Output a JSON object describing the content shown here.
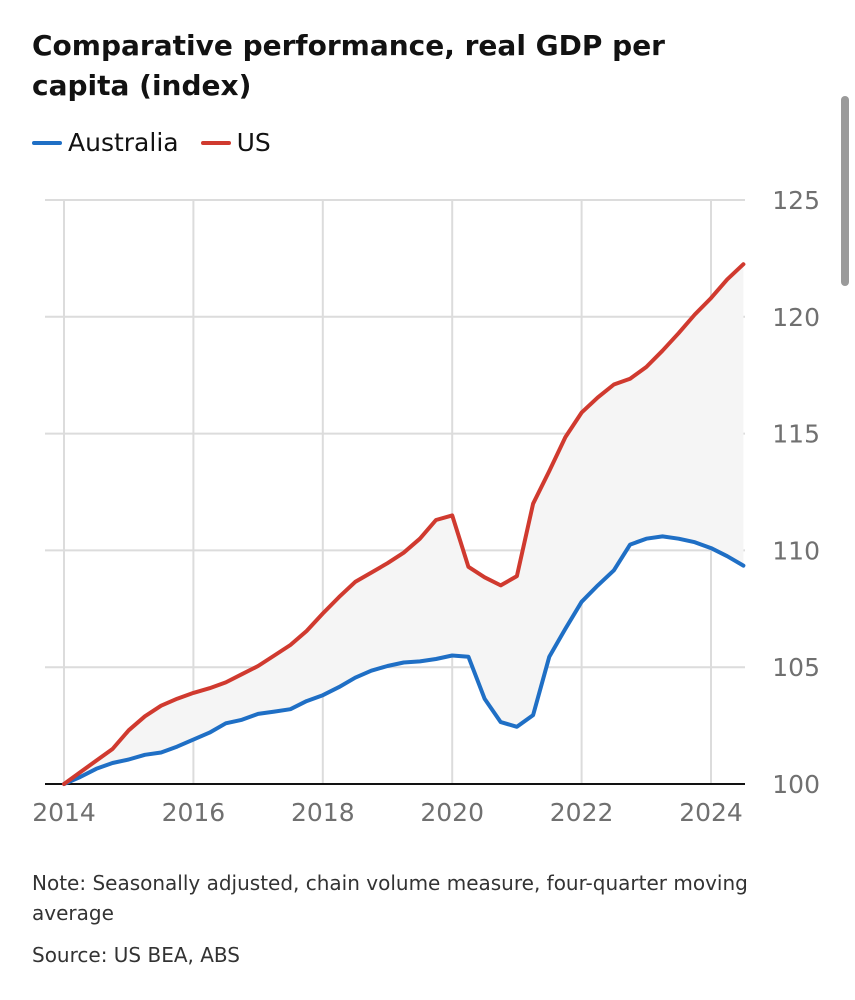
{
  "chart_data": {
    "type": "line",
    "title": "Comparative performance, real GDP per capita (index)",
    "xlabel": "",
    "ylabel": "",
    "xlim": [
      2014,
      2024.5
    ],
    "ylim": [
      100,
      125
    ],
    "x_ticks": [
      2014,
      2016,
      2018,
      2020,
      2022,
      2024
    ],
    "x_tick_labels": [
      "2014",
      "2016",
      "2018",
      "2020",
      "2022",
      "2024"
    ],
    "y_ticks": [
      100,
      105,
      110,
      115,
      120,
      125
    ],
    "y_tick_labels": [
      "100",
      "105",
      "110",
      "115",
      "120",
      "125"
    ],
    "grid": true,
    "legend": "top-left",
    "shaded_between_series": true,
    "x": [
      2014.0,
      2014.25,
      2014.5,
      2014.75,
      2015.0,
      2015.25,
      2015.5,
      2015.75,
      2016.0,
      2016.25,
      2016.5,
      2016.75,
      2017.0,
      2017.25,
      2017.5,
      2017.75,
      2018.0,
      2018.25,
      2018.5,
      2018.75,
      2019.0,
      2019.25,
      2019.5,
      2019.75,
      2020.0,
      2020.25,
      2020.5,
      2020.75,
      2021.0,
      2021.25,
      2021.5,
      2021.75,
      2022.0,
      2022.25,
      2022.5,
      2022.75,
      2023.0,
      2023.25,
      2023.5,
      2023.75,
      2024.0,
      2024.25,
      2024.5
    ],
    "series": [
      {
        "name": "Australia",
        "color": "#1f6fc5",
        "values": [
          100.0,
          100.3,
          100.65,
          100.9,
          101.05,
          101.25,
          101.35,
          101.6,
          101.9,
          102.2,
          102.6,
          102.75,
          103.0,
          103.1,
          103.2,
          103.55,
          103.8,
          104.15,
          104.55,
          104.85,
          105.05,
          105.2,
          105.25,
          105.35,
          105.5,
          105.45,
          103.65,
          102.65,
          102.45,
          102.95,
          105.45,
          106.65,
          107.8,
          108.5,
          109.15,
          110.25,
          110.5,
          110.6,
          110.5,
          110.35,
          110.1,
          109.75,
          109.35
        ]
      },
      {
        "name": "US",
        "color": "#d03a2f",
        "values": [
          100.0,
          100.5,
          101.0,
          101.5,
          102.3,
          102.9,
          103.35,
          103.65,
          103.9,
          104.1,
          104.35,
          104.7,
          105.05,
          105.5,
          105.95,
          106.55,
          107.3,
          108.0,
          108.65,
          109.05,
          109.45,
          109.9,
          110.5,
          111.3,
          111.5,
          109.3,
          108.85,
          108.5,
          108.9,
          112.0,
          113.4,
          114.85,
          115.9,
          116.55,
          117.1,
          117.35,
          117.85,
          118.55,
          119.3,
          120.1,
          120.8,
          121.6,
          122.25
        ]
      }
    ]
  },
  "note": "Note: Seasonally adjusted, chain volume measure, four-quarter moving average",
  "source": "Source: US BEA, ABS",
  "colors": {
    "grid": "#dcdcdc",
    "axis": "#121212",
    "tick_text": "#707070",
    "shade": "#f5f5f5"
  }
}
